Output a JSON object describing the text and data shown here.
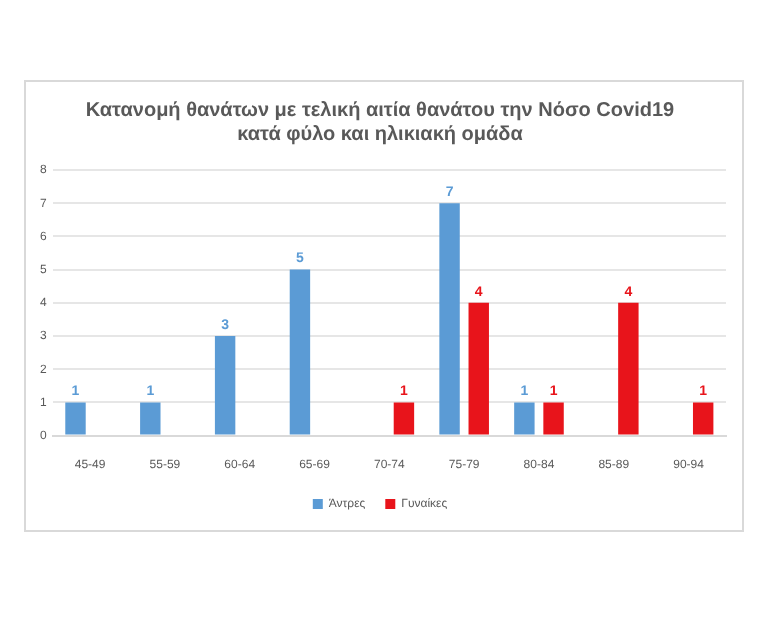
{
  "chart_data": {
    "type": "bar",
    "title": [
      "Κατανομή θανάτων με τελική αιτία θανάτου την Νόσο Covid19",
      "κατά φύλο και ηλικιακή ομάδα"
    ],
    "categories": [
      "45-49",
      "55-59",
      "60-64",
      "65-69",
      "70-74",
      "75-79",
      "80-84",
      "85-89",
      "90-94"
    ],
    "series": [
      {
        "name": "Άντρες",
        "color": "#5b9bd5",
        "values": [
          1,
          1,
          3,
          5,
          null,
          7,
          1,
          null,
          null
        ]
      },
      {
        "name": "Γυναίκες",
        "color": "#e8141b",
        "values": [
          null,
          null,
          null,
          null,
          1,
          4,
          1,
          4,
          1
        ]
      }
    ],
    "ylim": [
      0,
      8
    ],
    "yticks": [
      0,
      1,
      2,
      3,
      4,
      5,
      6,
      7,
      8
    ],
    "grid": "y",
    "legend": "bottom",
    "data_labels": true
  }
}
